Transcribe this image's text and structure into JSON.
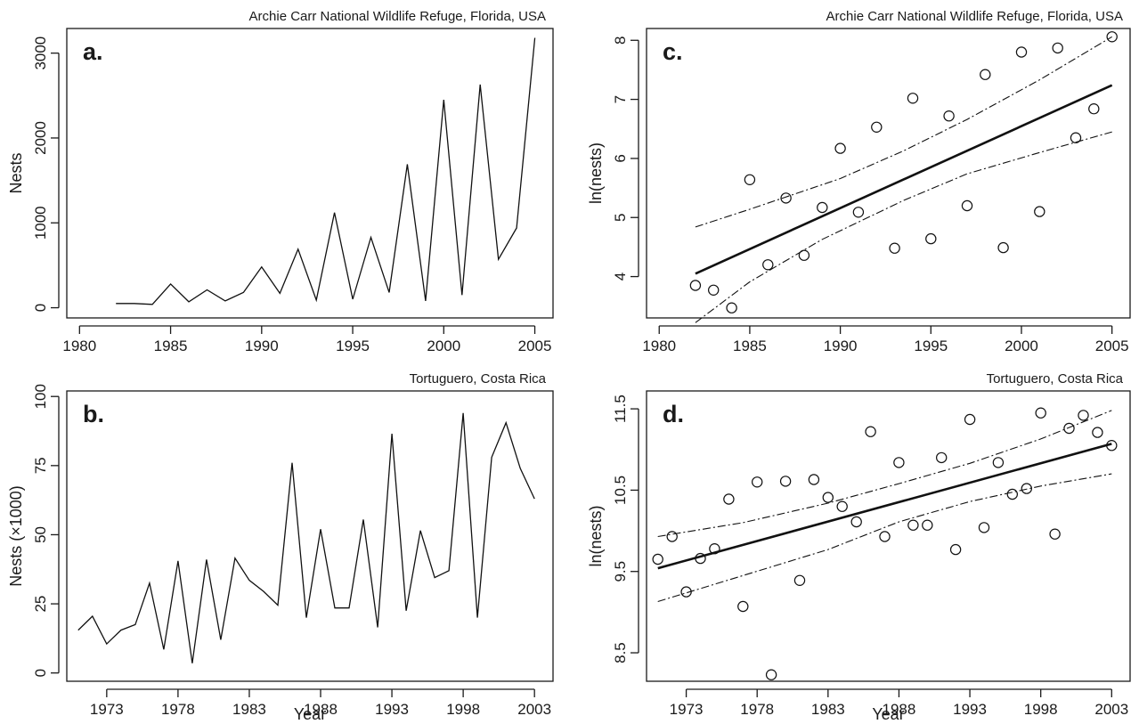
{
  "chart_data": [
    {
      "panel": "a.",
      "site": "Archie Carr National Wildlife Refuge, Florida, USA",
      "type": "line",
      "xlabel": "",
      "ylabel": "Nests",
      "xlim": [
        1979.3,
        2006
      ],
      "ylim": [
        -120,
        3290
      ],
      "xticks": [
        "1980",
        "1985",
        "1990",
        "1995",
        "2000",
        "2005"
      ],
      "yticks": [
        "0",
        "1000",
        "2000",
        "3000"
      ],
      "x": [
        1982,
        1983,
        1984,
        1985,
        1986,
        1987,
        1988,
        1989,
        1990,
        1991,
        1992,
        1993,
        1994,
        1995,
        1996,
        1997,
        1998,
        1999,
        2000,
        2001,
        2002,
        2003,
        2004,
        2005
      ],
      "values": [
        50,
        50,
        40,
        280,
        70,
        210,
        80,
        180,
        480,
        170,
        690,
        90,
        1120,
        100,
        830,
        180,
        1690,
        80,
        2450,
        150,
        2630,
        570,
        940,
        3180
      ]
    },
    {
      "panel": "b.",
      "site": "Tortuguero, Costa Rica",
      "type": "line",
      "xlabel": "Year",
      "ylabel": "Nests (×1000)",
      "xlim": [
        1970.2,
        2004.3
      ],
      "ylim": [
        -3,
        102
      ],
      "xticks": [
        "1973",
        "1978",
        "1983",
        "1988",
        "1993",
        "1998",
        "2003"
      ],
      "yticks": [
        "0",
        "25",
        "50",
        "75",
        "100"
      ],
      "x": [
        1971,
        1972,
        1973,
        1974,
        1975,
        1976,
        1977,
        1978,
        1979,
        1980,
        1981,
        1982,
        1983,
        1984,
        1985,
        1986,
        1987,
        1988,
        1989,
        1990,
        1991,
        1992,
        1993,
        1994,
        1995,
        1996,
        1997,
        1998,
        1999,
        2000,
        2001,
        2002,
        2003
      ],
      "values": [
        15.5,
        20.5,
        10.5,
        15.5,
        17.5,
        32.5,
        8.5,
        40.5,
        3.5,
        41,
        12,
        41.5,
        33.5,
        29.5,
        24.5,
        76,
        20,
        52,
        23.5,
        23.5,
        55.5,
        16.5,
        86.5,
        22.5,
        51.5,
        34.5,
        37,
        94,
        20,
        78,
        90.5,
        74,
        63
      ]
    },
    {
      "panel": "c.",
      "site": "Archie Carr National Wildlife Refuge, Florida, USA",
      "type": "scatter",
      "xlabel": "",
      "ylabel": "ln(nests)",
      "xlim": [
        1979.3,
        2006
      ],
      "ylim": [
        3.3,
        8.2
      ],
      "xticks": [
        "1980",
        "1985",
        "1990",
        "1995",
        "2000",
        "2005"
      ],
      "yticks": [
        "4",
        "5",
        "6",
        "7",
        "8"
      ],
      "x": [
        1982,
        1983,
        1984,
        1985,
        1986,
        1987,
        1988,
        1989,
        1990,
        1991,
        1992,
        1993,
        1994,
        1995,
        1996,
        1997,
        1998,
        1999,
        2000,
        2001,
        2002,
        2003,
        2004,
        2005
      ],
      "values": [
        3.85,
        3.77,
        3.47,
        5.64,
        4.2,
        5.33,
        4.36,
        5.17,
        6.17,
        5.09,
        6.53,
        4.48,
        7.02,
        4.64,
        6.72,
        5.2,
        7.42,
        4.49,
        7.8,
        5.1,
        7.87,
        6.35,
        6.84,
        8.06
      ],
      "fit": {
        "x": [
          1982,
          2005
        ],
        "y": [
          4.05,
          7.24
        ]
      },
      "ci_upper": {
        "x": [
          1982,
          1985,
          1990,
          1993.5,
          1997,
          2001,
          2005
        ],
        "y": [
          4.84,
          5.14,
          5.66,
          6.13,
          6.66,
          7.33,
          8.06
        ]
      },
      "ci_lower": {
        "x": [
          1982,
          1985,
          1989,
          1993.5,
          1997,
          2001,
          2005
        ],
        "y": [
          3.22,
          3.91,
          4.63,
          5.29,
          5.74,
          6.1,
          6.45
        ]
      }
    },
    {
      "panel": "d.",
      "site": "Tortuguero, Costa Rica",
      "type": "scatter",
      "xlabel": "Year",
      "ylabel": "ln(nests)",
      "xlim": [
        1970.2,
        2004.3
      ],
      "ylim": [
        8.15,
        11.72
      ],
      "xticks": [
        "1973",
        "1978",
        "1983",
        "1988",
        "1993",
        "1998",
        "2003"
      ],
      "yticks": [
        "8.5",
        "9.5",
        "10.5",
        "11.5"
      ],
      "x": [
        1971,
        1972,
        1973,
        1974,
        1975,
        1976,
        1977,
        1978,
        1979,
        1980,
        1981,
        1982,
        1983,
        1984,
        1985,
        1986,
        1987,
        1988,
        1989,
        1990,
        1991,
        1992,
        1993,
        1994,
        1995,
        1996,
        1997,
        1998,
        1999,
        2000,
        2001,
        2002,
        2003
      ],
      "values": [
        9.65,
        9.93,
        9.25,
        9.66,
        9.78,
        10.39,
        9.07,
        10.6,
        8.23,
        10.61,
        9.39,
        10.63,
        10.41,
        10.3,
        10.11,
        11.22,
        9.93,
        10.84,
        10.07,
        10.07,
        10.9,
        9.77,
        11.37,
        10.04,
        10.84,
        10.45,
        10.52,
        11.45,
        9.96,
        11.26,
        11.42,
        11.21,
        11.05
      ],
      "fit": {
        "x": [
          1971,
          2003
        ],
        "y": [
          9.54,
          11.07
        ]
      },
      "ci_upper": {
        "x": [
          1971,
          1977,
          1983,
          1988,
          1993,
          1998,
          2003
        ],
        "y": [
          9.93,
          10.1,
          10.34,
          10.58,
          10.83,
          11.13,
          11.48
        ]
      },
      "ci_lower": {
        "x": [
          1971,
          1977,
          1983,
          1988,
          1993,
          1998,
          2003
        ],
        "y": [
          9.13,
          9.45,
          9.77,
          10.11,
          10.36,
          10.55,
          10.7
        ]
      }
    }
  ]
}
